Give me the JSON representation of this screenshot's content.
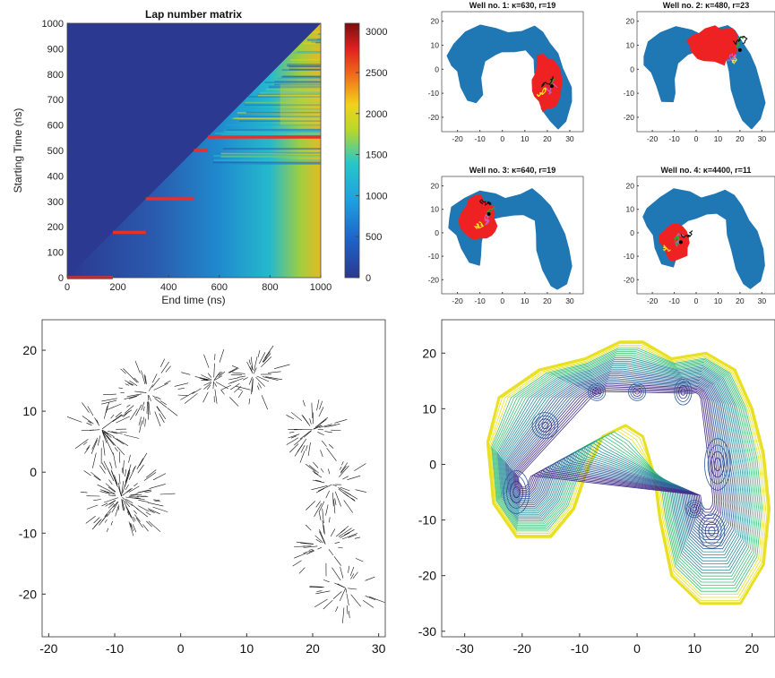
{
  "colors": {
    "heat_low": "#2b3990",
    "heat_mid": "#1e8fd1",
    "heat_high": "#7b0d0d",
    "red_segment": "#e8302a",
    "well_blue": "#1f77b4",
    "well_red": "#ee2222",
    "quiver": "#111111"
  },
  "chart_data": [
    {
      "id": "lap-matrix",
      "type": "heatmap",
      "title": "Lap number matrix",
      "xlabel": "End time (ns)",
      "ylabel": "Starting Time (ns)",
      "xlim": [
        0,
        1000
      ],
      "ylim": [
        0,
        1000
      ],
      "x_ticks": [
        "0",
        "200",
        "400",
        "600",
        "800",
        "1000"
      ],
      "y_ticks": [
        "0",
        "100",
        "200",
        "300",
        "400",
        "500",
        "600",
        "700",
        "800",
        "900",
        "1000"
      ],
      "colorbar_ticks": [
        "0",
        "500",
        "1000",
        "1500",
        "2000",
        "2500",
        "3000"
      ],
      "colorbar_range": [
        0,
        3100
      ],
      "segments": [
        {
          "y": 0,
          "x_start": 0,
          "x_end": 180
        },
        {
          "y": 178,
          "x_start": 180,
          "x_end": 310
        },
        {
          "y": 310,
          "x_start": 310,
          "x_end": 500
        },
        {
          "y": 500,
          "x_start": 500,
          "x_end": 555
        },
        {
          "y": 553,
          "x_start": 555,
          "x_end": 1000
        }
      ]
    },
    {
      "id": "well-1",
      "type": "scatter",
      "title": "Well no. 1: κ=630, r=19",
      "xlim": [
        -27,
        36
      ],
      "ylim": [
        -26,
        24
      ],
      "x_ticks": [
        "-20",
        "-10",
        "0",
        "10",
        "20",
        "30"
      ],
      "y_ticks": [
        "-20",
        "-10",
        "0",
        "10",
        "20"
      ],
      "center": [
        20,
        -7
      ]
    },
    {
      "id": "well-2",
      "type": "scatter",
      "title": "Well no. 2: κ=480, r=23",
      "xlim": [
        -27,
        36
      ],
      "ylim": [
        -26,
        24
      ],
      "x_ticks": [
        "-20",
        "-10",
        "0",
        "10",
        "20",
        "30"
      ],
      "y_ticks": [
        "-20",
        "-10",
        "0",
        "10",
        "20"
      ],
      "center": [
        18,
        8
      ]
    },
    {
      "id": "well-3",
      "type": "scatter",
      "title": "Well no. 3: κ=640, r=19",
      "xlim": [
        -27,
        36
      ],
      "ylim": [
        -26,
        24
      ],
      "x_ticks": [
        "-20",
        "-10",
        "0",
        "10",
        "20",
        "30"
      ],
      "y_ticks": [
        "-20",
        "-10",
        "0",
        "10",
        "20"
      ],
      "center": [
        -8,
        8
      ]
    },
    {
      "id": "well-4",
      "type": "scatter",
      "title": "Well no. 4: κ=4400, r=11",
      "xlim": [
        -27,
        36
      ],
      "ylim": [
        -26,
        24
      ],
      "x_ticks": [
        "-20",
        "-10",
        "0",
        "10",
        "20",
        "30"
      ],
      "y_ticks": [
        "-20",
        "-10",
        "0",
        "10",
        "20"
      ],
      "center": [
        -9,
        -4
      ]
    },
    {
      "id": "quiver",
      "type": "scatter",
      "title": "",
      "xlim": [
        -21,
        31
      ],
      "ylim": [
        -27,
        25
      ],
      "x_ticks": [
        "-20",
        "-10",
        "0",
        "10",
        "20",
        "30"
      ],
      "y_ticks": [
        "-20",
        "-10",
        "0",
        "10",
        "20"
      ]
    },
    {
      "id": "contour",
      "type": "line",
      "title": "",
      "xlim": [
        -34,
        24
      ],
      "ylim": [
        -31,
        26
      ],
      "x_ticks": [
        "-30",
        "-20",
        "-10",
        "0",
        "10",
        "20"
      ],
      "y_ticks": [
        "-30",
        "-20",
        "-10",
        "0",
        "10",
        "20"
      ]
    }
  ]
}
